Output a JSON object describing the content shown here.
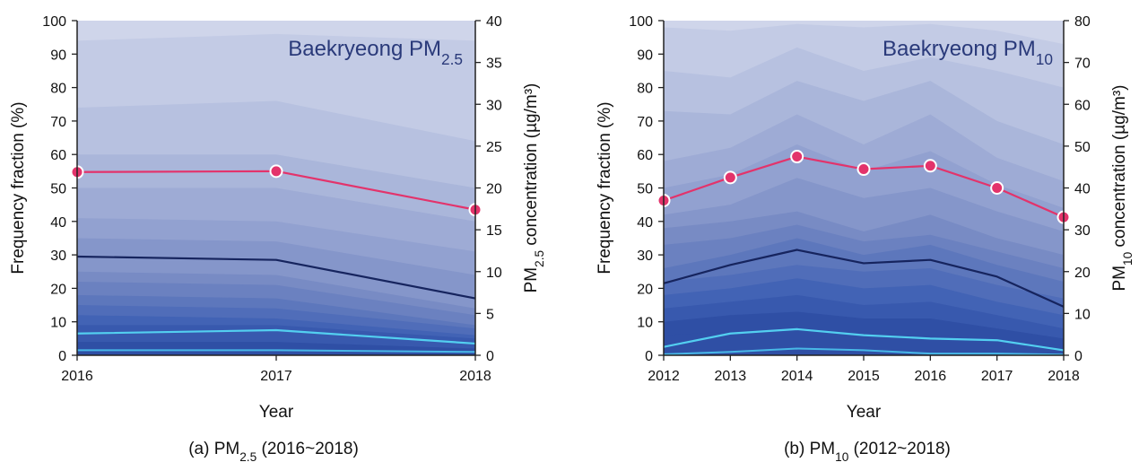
{
  "colors": {
    "conc": "#e3336b",
    "line_dark": "#16245e",
    "line_light": "#53cff0",
    "line_lighter": "#48b8e6",
    "bands": [
      "#cfd5ea",
      "#c3cbe5",
      "#b7c1e0",
      "#aab6da",
      "#9eabd5",
      "#92a1d0",
      "#8596ca",
      "#788bc4",
      "#6b81c0",
      "#5d77bc",
      "#506db9",
      "#4263b5",
      "#3859ae",
      "#2f4fa5"
    ]
  },
  "chart_data": [
    {
      "type": "area",
      "title": "Baekryeong PM",
      "title_sub": "2.5",
      "caption_prefix": "(a) PM",
      "caption_sub": "2.5",
      "caption_suffix": " (2016~2018)",
      "xlabel": "Year",
      "ylabel": "Frequency fraction (%)",
      "y2label_prefix": "PM",
      "y2label_sub": "2.5",
      "y2label_suffix": " concentration (µg/m³)",
      "x": [
        "2016",
        "2017",
        "2018"
      ],
      "ylim": [
        0,
        100
      ],
      "yticks": [
        0,
        10,
        20,
        30,
        40,
        50,
        60,
        70,
        80,
        90,
        100
      ],
      "y2lim": [
        0,
        40
      ],
      "y2ticks": [
        0,
        5,
        10,
        15,
        20,
        25,
        30,
        35,
        40
      ],
      "band_boundaries": [
        [
          94,
          96,
          94
        ],
        [
          74,
          76,
          64
        ],
        [
          60,
          60,
          50
        ],
        [
          50,
          50,
          40
        ],
        [
          41,
          40,
          31
        ],
        [
          35,
          34,
          24
        ],
        [
          25,
          24,
          14
        ],
        [
          22,
          21,
          12
        ],
        [
          18,
          17,
          9
        ],
        [
          15,
          14,
          8
        ],
        [
          12,
          11,
          6
        ],
        [
          9,
          9,
          5
        ],
        [
          4,
          4,
          2
        ]
      ],
      "series": [
        {
          "name": "concentration",
          "axis": "y2",
          "values": [
            21.9,
            22.0,
            17.4
          ]
        },
        {
          "name": "dark-line",
          "axis": "y",
          "values": [
            29.5,
            28.5,
            17
          ]
        },
        {
          "name": "light-line",
          "axis": "y",
          "values": [
            6.5,
            7.5,
            3.5
          ]
        },
        {
          "name": "lighter-line",
          "axis": "y",
          "values": [
            1.5,
            1.5,
            1.0
          ]
        }
      ]
    },
    {
      "type": "area",
      "title": "Baekryeong PM",
      "title_sub": "10",
      "caption_prefix": "(b) PM",
      "caption_sub": "10",
      "caption_suffix": " (2012~2018)",
      "xlabel": "Year",
      "ylabel": "Frequency fraction (%)",
      "y2label_prefix": "PM",
      "y2label_sub": "10",
      "y2label_suffix": " concentration (µg/m³)",
      "x": [
        "2012",
        "2013",
        "2014",
        "2015",
        "2016",
        "2017",
        "2018"
      ],
      "ylim": [
        0,
        100
      ],
      "yticks": [
        0,
        10,
        20,
        30,
        40,
        50,
        60,
        70,
        80,
        90,
        100
      ],
      "y2lim": [
        0,
        80
      ],
      "y2ticks": [
        0,
        10,
        20,
        30,
        40,
        50,
        60,
        70,
        80
      ],
      "band_boundaries": [
        [
          98,
          97,
          99,
          98,
          99,
          97,
          93
        ],
        [
          85,
          83,
          92,
          85,
          89,
          85,
          80
        ],
        [
          73,
          72,
          82,
          76,
          82,
          70,
          63
        ],
        [
          58,
          62,
          72,
          63,
          72,
          59,
          52
        ],
        [
          50,
          54,
          63,
          55,
          61,
          51,
          44
        ],
        [
          42,
          45,
          53,
          47,
          50,
          43,
          37
        ],
        [
          38,
          40,
          43,
          37,
          42,
          35,
          30
        ],
        [
          33,
          35,
          39,
          34,
          36,
          31,
          26
        ],
        [
          26,
          30,
          35,
          30,
          33,
          27,
          22
        ],
        [
          22,
          24,
          27,
          25,
          26,
          21,
          17
        ],
        [
          18,
          20,
          23,
          20,
          21,
          16,
          12
        ],
        [
          14,
          16,
          18,
          15,
          16,
          12,
          8
        ],
        [
          10,
          12,
          13,
          11,
          11,
          8,
          5
        ],
        [
          6,
          7,
          8,
          6,
          6,
          5,
          3
        ]
      ],
      "series": [
        {
          "name": "concentration",
          "axis": "y2",
          "values": [
            37,
            42.5,
            47.5,
            44.5,
            45.3,
            40,
            33
          ]
        },
        {
          "name": "dark-line",
          "axis": "y",
          "values": [
            21.5,
            27,
            31.5,
            27.5,
            28.5,
            23.5,
            14.5
          ]
        },
        {
          "name": "light-line",
          "axis": "y",
          "values": [
            2.5,
            6.5,
            7.8,
            6.0,
            5.0,
            4.5,
            1.5
          ]
        },
        {
          "name": "lighter-line",
          "axis": "y",
          "values": [
            0.3,
            1.0,
            2.0,
            1.5,
            0.5,
            0.5,
            0.2
          ]
        }
      ]
    }
  ]
}
